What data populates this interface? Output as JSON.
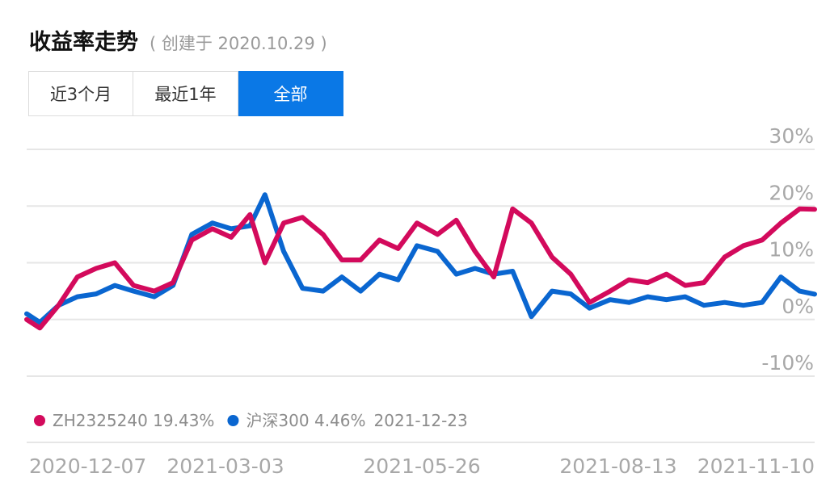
{
  "header": {
    "title": "收益率走势",
    "subtitle": "( 创建于 2020.10.29 )"
  },
  "tabs": [
    {
      "label": "近3个月",
      "active": false
    },
    {
      "label": "最近1年",
      "active": false
    },
    {
      "label": "全部",
      "active": true
    }
  ],
  "colors": {
    "portfolio": "#d30a5c",
    "index": "#0a66d0",
    "active_tab": "#0a78e6",
    "grid": "#e6e6e6",
    "axis_text": "#a8a8a8"
  },
  "chart_data": {
    "type": "line",
    "x_ticks": [
      "2020-12-07",
      "2021-03-03",
      "2021-05-26",
      "2021-08-13",
      "2021-11-10"
    ],
    "y_ticks": [
      "30%",
      "20%",
      "10%",
      "0%",
      "-10%"
    ],
    "ylim": [
      -10,
      30
    ],
    "xlim": [
      "2020-10-29",
      "2021-12-23"
    ],
    "legend": {
      "date": "2021-12-23",
      "items": [
        {
          "name": "ZH2325240",
          "value": "19.43%"
        },
        {
          "name": "沪深300",
          "value": "4.46%"
        }
      ]
    },
    "series": [
      {
        "name": "ZH2325240",
        "x": [
          "2020-10-29",
          "2020-11-05",
          "2020-11-15",
          "2020-11-25",
          "2020-12-05",
          "2020-12-15",
          "2020-12-25",
          "2021-01-05",
          "2021-01-15",
          "2021-01-25",
          "2021-02-05",
          "2021-02-15",
          "2021-02-25",
          "2021-03-05",
          "2021-03-15",
          "2021-03-25",
          "2021-04-05",
          "2021-04-15",
          "2021-04-25",
          "2021-05-05",
          "2021-05-15",
          "2021-05-25",
          "2021-06-05",
          "2021-06-15",
          "2021-06-25",
          "2021-07-05",
          "2021-07-15",
          "2021-07-25",
          "2021-08-05",
          "2021-08-15",
          "2021-08-25",
          "2021-09-05",
          "2021-09-15",
          "2021-09-25",
          "2021-10-05",
          "2021-10-15",
          "2021-10-25",
          "2021-11-05",
          "2021-11-15",
          "2021-11-25",
          "2021-12-05",
          "2021-12-15",
          "2021-12-23"
        ],
        "y": [
          0.0,
          -1.5,
          2.5,
          7.5,
          9.0,
          10.0,
          6.0,
          5.0,
          6.5,
          14.0,
          16.0,
          14.5,
          18.5,
          10.0,
          17.0,
          18.0,
          15.0,
          10.5,
          10.5,
          14.0,
          12.5,
          17.0,
          15.0,
          17.5,
          12.0,
          7.5,
          19.5,
          17.0,
          11.0,
          8.0,
          3.0,
          5.0,
          7.0,
          6.5,
          8.0,
          6.0,
          6.5,
          11.0,
          13.0,
          14.0,
          17.0,
          19.5,
          19.43
        ]
      },
      {
        "name": "沪深300",
        "x": [
          "2020-10-29",
          "2020-11-05",
          "2020-11-15",
          "2020-11-25",
          "2020-12-05",
          "2020-12-15",
          "2020-12-25",
          "2021-01-05",
          "2021-01-15",
          "2021-01-25",
          "2021-02-05",
          "2021-02-15",
          "2021-02-25",
          "2021-03-05",
          "2021-03-15",
          "2021-03-25",
          "2021-04-05",
          "2021-04-15",
          "2021-04-25",
          "2021-05-05",
          "2021-05-15",
          "2021-05-25",
          "2021-06-05",
          "2021-06-15",
          "2021-06-25",
          "2021-07-05",
          "2021-07-15",
          "2021-07-25",
          "2021-08-05",
          "2021-08-15",
          "2021-08-25",
          "2021-09-05",
          "2021-09-15",
          "2021-09-25",
          "2021-10-05",
          "2021-10-15",
          "2021-10-25",
          "2021-11-05",
          "2021-11-15",
          "2021-11-25",
          "2021-12-05",
          "2021-12-15",
          "2021-12-23"
        ],
        "y": [
          1.0,
          -0.5,
          2.5,
          4.0,
          4.5,
          6.0,
          5.0,
          4.0,
          6.0,
          15.0,
          17.0,
          16.0,
          16.5,
          22.0,
          12.0,
          5.5,
          5.0,
          7.5,
          5.0,
          8.0,
          7.0,
          13.0,
          12.0,
          8.0,
          9.0,
          8.0,
          8.5,
          0.5,
          5.0,
          4.5,
          2.0,
          3.5,
          3.0,
          4.0,
          3.5,
          4.0,
          2.5,
          3.0,
          2.5,
          3.0,
          7.5,
          5.0,
          4.46
        ]
      }
    ]
  }
}
